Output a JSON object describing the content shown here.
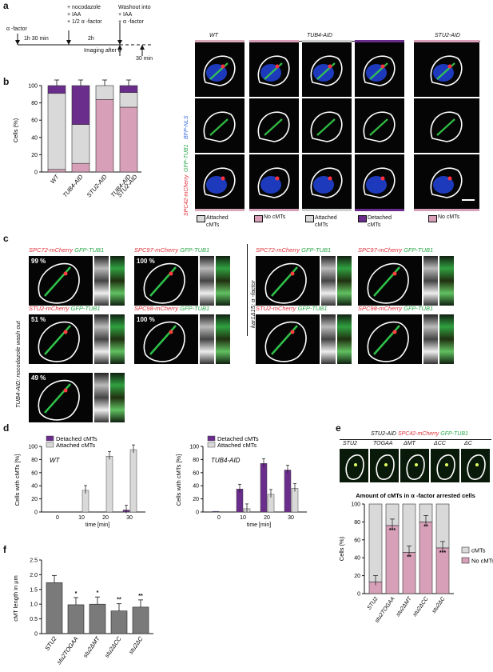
{
  "colors": {
    "attached": "#d9d9d9",
    "detached": "#6a2d8c",
    "no_cmts": "#d8a0b8",
    "grey_bar": "#7a7a7a",
    "red_label": "#e0303a",
    "green_label": "#2aa84a",
    "blue_label": "#3a6ee0"
  },
  "panel_letters": {
    "a": "a",
    "b": "b",
    "c": "c",
    "d": "d",
    "e": "e",
    "f": "f"
  },
  "timeline": {
    "alpha_factor_label": "α -factor",
    "step1_title": "+ nocodazole",
    "step1_iaa": "+ IAA",
    "step1_alpha": "+ 1/2  α -factor",
    "step2_title": "Washout into",
    "step2_iaa": "+ IAA",
    "step2_alpha": "+  α -factor",
    "dur1": "1h 30 min",
    "dur2": "2h",
    "imaging_label": "Imaging after 0",
    "end_label": "30 min"
  },
  "micro_a": {
    "col_wt": "WT",
    "col_tub4": "TUB4-AID",
    "col_stu2": "STU2-AID",
    "row_label_spc42": "SPC42-mCherry",
    "row_label_gfp": "GFP-TUB1",
    "row_label_bfp": "BFP-NLS",
    "legend": [
      {
        "text": "Attached cMTs",
        "key": "attached"
      },
      {
        "text": "No cMTs",
        "key": "no_cmts"
      },
      {
        "text": "Attached cMTs",
        "key": "attached"
      },
      {
        "text": "Detached cMTs",
        "key": "detached"
      },
      {
        "text": "No cMTs",
        "key": "no_cmts"
      }
    ]
  },
  "chart_data": [
    {
      "id": "b",
      "type": "bar",
      "stacked": true,
      "ylabel": "Cells (%)",
      "ylim": [
        0,
        100
      ],
      "yticks": [
        0,
        20,
        40,
        60,
        80,
        100
      ],
      "categories": [
        "WT",
        "TUB4-AID",
        "STU2-AID",
        "TUB4-AID STU2-AID"
      ],
      "series": [
        {
          "key": "no_cmts",
          "values": [
            3,
            10,
            84,
            75
          ]
        },
        {
          "key": "attached",
          "values": [
            88,
            45,
            16,
            17
          ]
        },
        {
          "key": "detached",
          "values": [
            9,
            45,
            0,
            8
          ]
        }
      ]
    },
    {
      "id": "d1",
      "type": "bar",
      "title": "WT",
      "xlabel": "time [min]",
      "ylabel": "Cells with cMTs [%]",
      "ylim": [
        0,
        100
      ],
      "yticks": [
        0,
        20,
        40,
        60,
        80,
        100
      ],
      "categories": [
        "0",
        "10",
        "20",
        "30"
      ],
      "series": [
        {
          "name": "Detached cMTs",
          "key": "detached",
          "values": [
            0,
            0,
            0,
            3
          ]
        },
        {
          "name": "Attached cMTs",
          "key": "attached",
          "values": [
            0,
            33,
            85,
            95
          ]
        }
      ]
    },
    {
      "id": "d2",
      "type": "bar",
      "title": "TUB4-AID",
      "xlabel": "time [min]",
      "ylabel": "Cells with cMTs [%]",
      "ylim": [
        0,
        100
      ],
      "yticks": [
        0,
        20,
        40,
        60,
        80,
        100
      ],
      "categories": [
        "0",
        "10",
        "20",
        "30"
      ],
      "series": [
        {
          "name": "Detached cMTs",
          "key": "detached",
          "values": [
            1,
            35,
            74,
            64
          ]
        },
        {
          "name": "Attached cMTs",
          "key": "attached",
          "values": [
            0,
            5,
            27,
            36
          ]
        }
      ]
    },
    {
      "id": "e",
      "type": "bar",
      "stacked": true,
      "title": "Amount of cMTs in  α -factor arrested cells",
      "ylabel": "Cells (%)",
      "ylim": [
        0,
        100
      ],
      "yticks": [
        0,
        20,
        40,
        60,
        80,
        100
      ],
      "categories": [
        "STU2",
        "stu2TOGAA",
        "stu2ΔMT",
        "stu2ΔCC",
        "stu2ΔC"
      ],
      "significance": [
        "",
        "***",
        "**",
        "**",
        "***"
      ],
      "series": [
        {
          "name": "No cMTs",
          "key": "no_cmts",
          "values": [
            13,
            76,
            46,
            80,
            51
          ]
        },
        {
          "name": "cMTs",
          "key": "attached",
          "values": [
            87,
            24,
            54,
            20,
            49
          ]
        }
      ]
    },
    {
      "id": "f",
      "type": "bar",
      "ylabel": "cMT length in μm",
      "ylim": [
        0,
        2.5
      ],
      "yticks": [
        "0",
        "0.5",
        "1.0",
        "1.5",
        "2.0",
        "2.5"
      ],
      "categories": [
        "STU2",
        "stu2TOGAA",
        "stu2ΔMT",
        "stu2ΔCC",
        "stu2ΔC"
      ],
      "values": [
        1.73,
        0.98,
        1.0,
        0.77,
        0.9
      ],
      "significance": [
        "",
        "*",
        "*",
        "**",
        "**"
      ]
    }
  ],
  "micro_c": {
    "side_left": "TUB4-AID: nocodazole wash out",
    "side_right": "kar1Δ15; α -factor",
    "tiles": [
      {
        "red": "SPC72-mCherry",
        "green": "GFP-TUB1",
        "pct": "99 %"
      },
      {
        "red": "SPC97-mCherry",
        "green": "GFP-TUB1",
        "pct": "100 %"
      },
      {
        "red": "STU2-mCherry",
        "green": "GFP-TUB1",
        "pct": "51 %"
      },
      {
        "red": "SPC98-mCherry",
        "green": "GFP-TUB1",
        "pct": "100 %"
      },
      {
        "red": "",
        "green": "",
        "pct": "49 %"
      },
      {
        "red": "SPC72-mCherry",
        "green": "GFP-TUB1",
        "pct": ""
      },
      {
        "red": "SPC97-mCherry",
        "green": "GFP-TUB1",
        "pct": ""
      },
      {
        "red": "STU2-mCherry",
        "green": "GFP-TUB1",
        "pct": ""
      },
      {
        "red": "SPC98-mCherry",
        "green": "GFP-TUB1",
        "pct": ""
      }
    ]
  },
  "micro_e": {
    "header_stu2": "STU2-AID",
    "header_spc42": "SPC42-mCherry",
    "header_gfp": "GFP-TUB1",
    "cols": [
      "STU2",
      "TOGAA",
      "ΔMT",
      "ΔCC",
      "ΔC"
    ]
  }
}
